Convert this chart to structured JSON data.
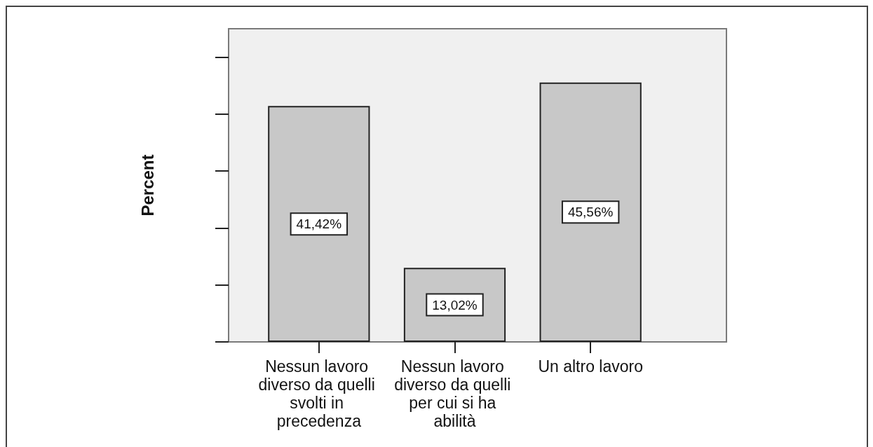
{
  "chart_data": {
    "type": "bar",
    "ylabel": "Percent",
    "categories": [
      "Nessun lavoro diverso da quelli svolti in precedenza",
      "Nessun lavoro diverso da quelli per cui si ha abilità",
      "Un altro lavoro"
    ],
    "values": [
      41.42,
      13.02,
      45.56
    ],
    "value_labels": [
      "41,42%",
      "13,02%",
      "45,56%"
    ],
    "color": "#c8c8c8",
    "ylim": [
      0,
      55
    ],
    "tick_labels": "x",
    "grid": false
  }
}
